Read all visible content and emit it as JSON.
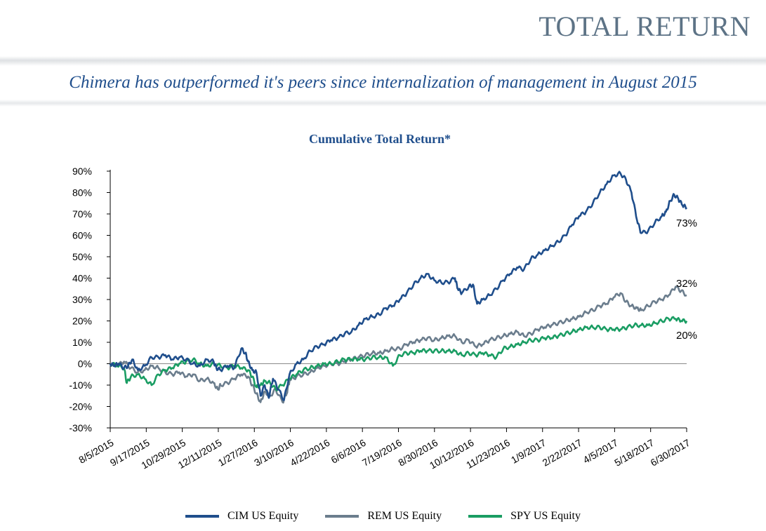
{
  "header": {
    "title": "TOTAL RETURN",
    "subtitle": "Chimera has outperformed it's peers since internalization of management in August 2015"
  },
  "chart_data": {
    "type": "line",
    "title": "Cumulative Total Return*",
    "xlabel": "",
    "ylabel": "",
    "ylim": [
      -30,
      90
    ],
    "y_ticks": [
      "90%",
      "80%",
      "70%",
      "60%",
      "50%",
      "40%",
      "30%",
      "20%",
      "10%",
      "0%",
      "-10%",
      "-20%",
      "-30%"
    ],
    "y_tick_values": [
      90,
      80,
      70,
      60,
      50,
      40,
      30,
      20,
      10,
      0,
      -10,
      -20,
      -30
    ],
    "x_ticks": [
      "8/5/2015",
      "9/17/2015",
      "10/29/2015",
      "12/11/2015",
      "1/27/2016",
      "3/10/2016",
      "4/22/2016",
      "6/6/2016",
      "7/19/2016",
      "8/30/2016",
      "10/12/2016",
      "11/23/2016",
      "1/9/2017",
      "2/22/2017",
      "4/5/2017",
      "5/18/2017",
      "6/30/2017"
    ],
    "zero_line": true,
    "legend_position": "bottom",
    "series": [
      {
        "name": "CIM US Equity",
        "color": "#1f4e8c",
        "end_label": "73%",
        "points": [
          [
            0,
            0
          ],
          [
            0.3,
            -1
          ],
          [
            0.6,
            0
          ],
          [
            1,
            -2
          ],
          [
            1.3,
            -1
          ],
          [
            1.6,
            2
          ],
          [
            2,
            -3
          ],
          [
            2.5,
            -1
          ],
          [
            3,
            3
          ],
          [
            3.5,
            3
          ],
          [
            4,
            4
          ],
          [
            4.5,
            2
          ],
          [
            5,
            3
          ],
          [
            5.5,
            2
          ],
          [
            6,
            0
          ],
          [
            6.5,
            -1
          ],
          [
            7,
            2
          ],
          [
            7.5,
            1
          ],
          [
            7.7,
            -2
          ],
          [
            8,
            -3
          ],
          [
            8.5,
            -1
          ],
          [
            9,
            -2
          ],
          [
            9.5,
            7
          ],
          [
            9.8,
            5
          ],
          [
            10,
            1
          ],
          [
            10.3,
            -3
          ],
          [
            10.6,
            -4
          ],
          [
            10.9,
            -15
          ],
          [
            11.2,
            -10
          ],
          [
            11.5,
            -16
          ],
          [
            11.8,
            -7
          ],
          [
            12.2,
            -12
          ],
          [
            12.6,
            -17
          ],
          [
            13,
            -5
          ],
          [
            13.5,
            0
          ],
          [
            14,
            2
          ],
          [
            14.5,
            6
          ],
          [
            15,
            8
          ],
          [
            15.5,
            9
          ],
          [
            16,
            11
          ],
          [
            16.5,
            12
          ],
          [
            17,
            14
          ],
          [
            17.5,
            15
          ],
          [
            18,
            18
          ],
          [
            18.5,
            21
          ],
          [
            19,
            22
          ],
          [
            19.5,
            23
          ],
          [
            20,
            26
          ],
          [
            20.5,
            27
          ],
          [
            21,
            30
          ],
          [
            21.5,
            33
          ],
          [
            22,
            37
          ],
          [
            22.5,
            40
          ],
          [
            23,
            42
          ],
          [
            23.5,
            39
          ],
          [
            24,
            38
          ],
          [
            24.5,
            38
          ],
          [
            25,
            40
          ],
          [
            25.2,
            35
          ],
          [
            25.5,
            33
          ],
          [
            26,
            36
          ],
          [
            26.3,
            37
          ],
          [
            26.6,
            28
          ],
          [
            27,
            30
          ],
          [
            27.5,
            32
          ],
          [
            28,
            35
          ],
          [
            28.5,
            39
          ],
          [
            29,
            42
          ],
          [
            29.5,
            45
          ],
          [
            30,
            44
          ],
          [
            30.5,
            49
          ],
          [
            31,
            51
          ],
          [
            31.5,
            53
          ],
          [
            32,
            55
          ],
          [
            32.5,
            57
          ],
          [
            33,
            60
          ],
          [
            33.5,
            65
          ],
          [
            34,
            69
          ],
          [
            34.5,
            71
          ],
          [
            35,
            75
          ],
          [
            35.5,
            80
          ],
          [
            36,
            84
          ],
          [
            36.5,
            88
          ],
          [
            37,
            89
          ],
          [
            37.4,
            86
          ],
          [
            37.8,
            80
          ],
          [
            38.2,
            67
          ],
          [
            38.5,
            61
          ],
          [
            39,
            62
          ],
          [
            39.5,
            66
          ],
          [
            40,
            69
          ],
          [
            40.3,
            71
          ],
          [
            40.6,
            76
          ],
          [
            40.9,
            79
          ],
          [
            41.2,
            77
          ],
          [
            41.5,
            74
          ],
          [
            41.8,
            73
          ]
        ]
      },
      {
        "name": "REM US Equity",
        "color": "#6b7d8d",
        "end_label": "32%",
        "points": [
          [
            0,
            0
          ],
          [
            0.5,
            -1
          ],
          [
            1,
            1
          ],
          [
            1.5,
            -2
          ],
          [
            2,
            -4
          ],
          [
            2.5,
            -3
          ],
          [
            3,
            -1
          ],
          [
            3.5,
            -2
          ],
          [
            4,
            -4
          ],
          [
            4.5,
            -5
          ],
          [
            5,
            -4
          ],
          [
            5.5,
            -6
          ],
          [
            6,
            -5
          ],
          [
            6.5,
            -8
          ],
          [
            7,
            -7
          ],
          [
            7.5,
            -9
          ],
          [
            7.8,
            -12
          ],
          [
            8,
            -10
          ],
          [
            8.5,
            -9
          ],
          [
            9,
            -7
          ],
          [
            9.5,
            -5
          ],
          [
            10,
            -6
          ],
          [
            10.3,
            -10
          ],
          [
            10.6,
            -14
          ],
          [
            10.9,
            -18
          ],
          [
            11.2,
            -13
          ],
          [
            11.6,
            -15
          ],
          [
            12,
            -12
          ],
          [
            12.5,
            -18
          ],
          [
            12.8,
            -14
          ],
          [
            13,
            -8
          ],
          [
            13.5,
            -6
          ],
          [
            14,
            -5
          ],
          [
            14.5,
            -4
          ],
          [
            15,
            -2
          ],
          [
            15.5,
            -1
          ],
          [
            16,
            0
          ],
          [
            16.5,
            0
          ],
          [
            17,
            1
          ],
          [
            17.5,
            2
          ],
          [
            18,
            3
          ],
          [
            18.5,
            4
          ],
          [
            19,
            5
          ],
          [
            19.5,
            5
          ],
          [
            20,
            6
          ],
          [
            20.5,
            7
          ],
          [
            21,
            7
          ],
          [
            21.5,
            9
          ],
          [
            22,
            10
          ],
          [
            22.5,
            11
          ],
          [
            23,
            12
          ],
          [
            23.5,
            11
          ],
          [
            24,
            12
          ],
          [
            24.5,
            13
          ],
          [
            25,
            13
          ],
          [
            25.5,
            10
          ],
          [
            26,
            11
          ],
          [
            26.5,
            8
          ],
          [
            27,
            9
          ],
          [
            27.5,
            11
          ],
          [
            28,
            12
          ],
          [
            28.5,
            13
          ],
          [
            29,
            14
          ],
          [
            29.5,
            15
          ],
          [
            30,
            13
          ],
          [
            30.5,
            14
          ],
          [
            31,
            16
          ],
          [
            31.5,
            17
          ],
          [
            32,
            18
          ],
          [
            32.5,
            19
          ],
          [
            33,
            20
          ],
          [
            33.5,
            21
          ],
          [
            34,
            22
          ],
          [
            34.5,
            24
          ],
          [
            35,
            25
          ],
          [
            35.5,
            27
          ],
          [
            36,
            28
          ],
          [
            36.5,
            31
          ],
          [
            37,
            33
          ],
          [
            37.4,
            29
          ],
          [
            37.8,
            27
          ],
          [
            38.2,
            26
          ],
          [
            38.5,
            25
          ],
          [
            39,
            27
          ],
          [
            39.5,
            29
          ],
          [
            40,
            30
          ],
          [
            40.5,
            32
          ],
          [
            41,
            36
          ],
          [
            41.4,
            34
          ],
          [
            41.8,
            32
          ]
        ]
      },
      {
        "name": "SPY US Equity",
        "color": "#1a9d63",
        "end_label": "20%",
        "points": [
          [
            0,
            0
          ],
          [
            0.5,
            -1
          ],
          [
            1,
            -2
          ],
          [
            1.2,
            -9
          ],
          [
            1.5,
            -6
          ],
          [
            2,
            -5
          ],
          [
            2.5,
            -7
          ],
          [
            3,
            -10
          ],
          [
            3.5,
            -5
          ],
          [
            4,
            -3
          ],
          [
            4.5,
            -2
          ],
          [
            5,
            0
          ],
          [
            5.5,
            1
          ],
          [
            6,
            2
          ],
          [
            6.5,
            0
          ],
          [
            7,
            -1
          ],
          [
            7.5,
            0
          ],
          [
            8,
            -1
          ],
          [
            8.5,
            -2
          ],
          [
            9,
            -1
          ],
          [
            9.5,
            -2
          ],
          [
            10,
            -3
          ],
          [
            10.3,
            -6
          ],
          [
            10.6,
            -11
          ],
          [
            10.9,
            -10
          ],
          [
            11.2,
            -8
          ],
          [
            11.6,
            -9
          ],
          [
            12,
            -12
          ],
          [
            12.5,
            -10
          ],
          [
            13,
            -7
          ],
          [
            13.5,
            -5
          ],
          [
            14,
            -3
          ],
          [
            14.5,
            -2
          ],
          [
            15,
            -1
          ],
          [
            15.5,
            0
          ],
          [
            16,
            0
          ],
          [
            16.5,
            1
          ],
          [
            17,
            2
          ],
          [
            17.5,
            2
          ],
          [
            18,
            2
          ],
          [
            18.5,
            2
          ],
          [
            19,
            3
          ],
          [
            19.5,
            3
          ],
          [
            20,
            3
          ],
          [
            20.5,
            -1
          ],
          [
            21,
            4
          ],
          [
            21.5,
            5
          ],
          [
            22,
            5
          ],
          [
            22.5,
            6
          ],
          [
            23,
            6
          ],
          [
            23.5,
            6
          ],
          [
            24,
            6
          ],
          [
            24.5,
            6
          ],
          [
            25,
            6
          ],
          [
            25.5,
            4
          ],
          [
            26,
            5
          ],
          [
            26.5,
            4
          ],
          [
            27,
            5
          ],
          [
            27.5,
            4
          ],
          [
            28,
            3
          ],
          [
            28.5,
            7
          ],
          [
            29,
            8
          ],
          [
            29.5,
            9
          ],
          [
            30,
            10
          ],
          [
            30.5,
            11
          ],
          [
            31,
            11
          ],
          [
            31.5,
            12
          ],
          [
            32,
            12
          ],
          [
            32.5,
            13
          ],
          [
            33,
            14
          ],
          [
            33.5,
            15
          ],
          [
            34,
            16
          ],
          [
            34.5,
            17
          ],
          [
            35,
            17
          ],
          [
            35.5,
            17
          ],
          [
            36,
            16
          ],
          [
            36.5,
            16
          ],
          [
            37,
            16
          ],
          [
            37.5,
            17
          ],
          [
            38,
            18
          ],
          [
            38.5,
            18
          ],
          [
            39,
            18
          ],
          [
            39.5,
            19
          ],
          [
            40,
            20
          ],
          [
            40.5,
            21
          ],
          [
            41,
            21
          ],
          [
            41.4,
            20
          ],
          [
            41.8,
            20
          ]
        ]
      }
    ]
  }
}
